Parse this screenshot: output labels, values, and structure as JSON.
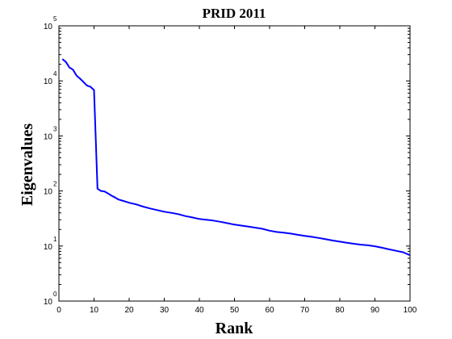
{
  "chart_data": {
    "type": "line",
    "title": "PRID 2011",
    "xlabel": "Rank",
    "ylabel": "Eigenvalues",
    "y_scale": "log",
    "xlim": [
      0,
      100
    ],
    "ylim_log10": [
      0,
      5
    ],
    "grid": false,
    "x_ticks": [
      "0",
      "10",
      "20",
      "30",
      "40",
      "50",
      "60",
      "70",
      "80",
      "90",
      "100"
    ],
    "y_ticks": [
      {
        "base": "10",
        "exponent": "0"
      },
      {
        "base": "10",
        "exponent": "1"
      },
      {
        "base": "10",
        "exponent": "2"
      },
      {
        "base": "10",
        "exponent": "3"
      },
      {
        "base": "10",
        "exponent": "4"
      },
      {
        "base": "10",
        "exponent": "5"
      }
    ],
    "series": [
      {
        "color": "#0000ff",
        "x": [
          1,
          2,
          3,
          4,
          5,
          6,
          7,
          8,
          9,
          10,
          11,
          12,
          13,
          14,
          15,
          16,
          17,
          18,
          19,
          20,
          22,
          24,
          26,
          28,
          30,
          32,
          34,
          36,
          38,
          40,
          42,
          44,
          46,
          48,
          50,
          52,
          54,
          56,
          58,
          60,
          62,
          64,
          66,
          68,
          70,
          72,
          74,
          76,
          78,
          80,
          82,
          84,
          86,
          88,
          90,
          92,
          94,
          96,
          98,
          100
        ],
        "y": [
          25000,
          22000,
          17500,
          16000,
          12500,
          11000,
          9500,
          8200,
          7800,
          6800,
          110,
          100,
          98,
          90,
          82,
          76,
          70,
          67,
          64,
          61,
          57,
          52,
          48,
          45,
          42,
          40,
          38,
          35,
          33,
          31,
          30,
          29,
          27.5,
          26,
          24.5,
          23.5,
          22.5,
          21.5,
          20.5,
          19,
          18,
          17.5,
          16.8,
          16,
          15.3,
          14.7,
          14,
          13.3,
          12.6,
          12,
          11.5,
          11,
          10.6,
          10.3,
          9.9,
          9.3,
          8.7,
          8.2,
          7.7,
          6.8
        ]
      }
    ]
  }
}
